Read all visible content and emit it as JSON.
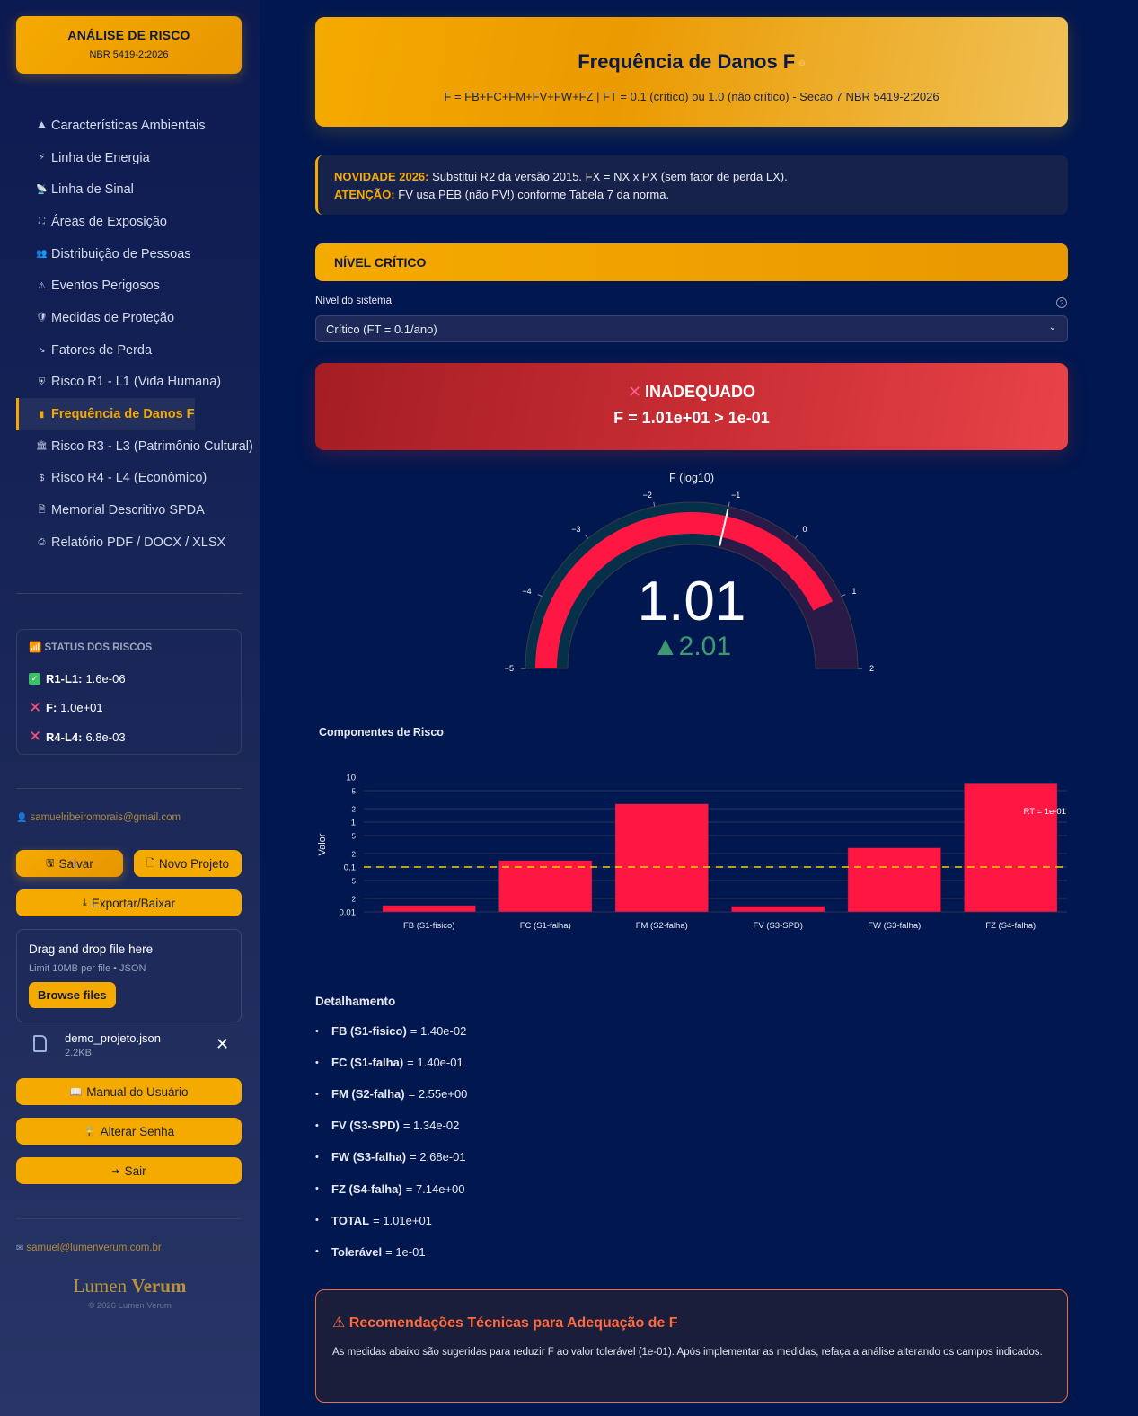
{
  "sidebar": {
    "brand": {
      "title": "ANÁLISE DE RISCO",
      "subtitle": "NBR 5419-2:2026"
    },
    "nav": [
      {
        "icon": "mountain-icon",
        "glyph": "⛰",
        "label": "Características Ambientais"
      },
      {
        "icon": "plug-icon",
        "glyph": "⚡",
        "label": "Linha de Energia"
      },
      {
        "icon": "antenna-icon",
        "glyph": "📡",
        "label": "Linha de Sinal"
      },
      {
        "icon": "expand-icon",
        "glyph": "⛶",
        "label": "Áreas de Exposição"
      },
      {
        "icon": "people-icon",
        "glyph": "👥",
        "label": "Distribuição de Pessoas"
      },
      {
        "icon": "warning-icon",
        "glyph": "⚠",
        "label": "Eventos Perigosos"
      },
      {
        "icon": "shield-icon",
        "glyph": "🛡",
        "label": "Medidas de Proteção"
      },
      {
        "icon": "trend-down-icon",
        "glyph": "↘",
        "label": "Fatores de Perda"
      },
      {
        "icon": "shield-heart-icon",
        "glyph": "⛨",
        "label": "Risco R1 - L1 (Vida Humana)"
      },
      {
        "icon": "bar-chart-icon",
        "glyph": "▮",
        "label": "Frequência de Danos F",
        "active": true
      },
      {
        "icon": "museum-icon",
        "glyph": "🏛",
        "label": "Risco R3 - L3 (Patrimônio Cultural)"
      },
      {
        "icon": "dollar-icon",
        "glyph": "$",
        "label": "Risco R4 - L4 (Econômico)"
      },
      {
        "icon": "document-icon",
        "glyph": "🗎",
        "label": "Memorial Descritivo SPDA"
      },
      {
        "icon": "printer-icon",
        "glyph": "⎙",
        "label": "Relatório PDF / DOCX / XLSX"
      }
    ],
    "status": {
      "title": "STATUS DOS RISCOS",
      "items": [
        {
          "key": "R1-L1:",
          "value": "1.6e-06",
          "state": "ok"
        },
        {
          "key": "F:",
          "value": "1.0e+01",
          "state": "fail"
        },
        {
          "key": "R4-L4:",
          "value": "6.8e-03",
          "state": "fail"
        }
      ]
    },
    "user_email": "samuelribeiromorais@gmail.com",
    "buttons": {
      "save": "Salvar",
      "new_project": "Novo Projeto",
      "export": "Exportar/Baixar",
      "manual": "Manual do Usuário",
      "change_password": "Alterar Senha",
      "logout": "Sair"
    },
    "upload": {
      "title": "Drag and drop file here",
      "limit": "Limit 10MB per file • JSON",
      "browse": "Browse files",
      "file_name": "demo_projeto.json",
      "file_size": "2.2KB"
    },
    "footer_email": "samuel@lumenverum.com.br",
    "logo_light": "Lumen ",
    "logo_bold": "Verum",
    "copyright": "© 2026 Lumen Verum"
  },
  "main": {
    "title": "Frequência de Danos F",
    "anchor_glyph": "⊖",
    "subtitle": "F = FB+FC+FM+FV+FW+FZ | FT = 0.1 (crítico) ou 1.0 (não crítico) - Secao 7 NBR 5419-2:2026",
    "notice": {
      "l1_label": "NOVIDADE 2026:",
      "l1_text": " Substitui R2 da versão 2015. FX = NX x PX (sem fator de perda LX).",
      "l2_label": "ATENÇÃO:",
      "l2_text": " FV usa PEB (não PV!) conforme Tabela 7 da norma."
    },
    "section": "NÍVEL CRÍTICO",
    "field_label": "Nível do sistema",
    "select_value": "Crítico (FT = 0.1/ano)",
    "verdict": {
      "status": "INADEQUADO",
      "expression": "F = 1.01e+01 > 1e-01"
    },
    "gauge": {
      "title": "F (log10)",
      "value": "1.01",
      "delta": "▲2.01",
      "min": -5,
      "max": 2,
      "threshold": -1,
      "current": 1.01,
      "ticks": [
        "−5",
        "−4",
        "−3",
        "−2",
        "−1",
        "0",
        "1",
        "2"
      ]
    },
    "chart_title": "Componentes de Risco",
    "detail_title": "Detalhamento",
    "details": [
      {
        "k": "FB (S1-fisico)",
        "v": "= 1.40e-02"
      },
      {
        "k": "FC (S1-falha)",
        "v": "= 1.40e-01"
      },
      {
        "k": "FM (S2-falha)",
        "v": "= 2.55e+00"
      },
      {
        "k": "FV (S3-SPD)",
        "v": "= 1.34e-02"
      },
      {
        "k": "FW (S3-falha)",
        "v": "= 2.68e-01"
      },
      {
        "k": "FZ (S4-falha)",
        "v": "= 7.14e+00"
      },
      {
        "k": "TOTAL",
        "v": "= 1.01e+01"
      },
      {
        "k": "Tolerável",
        "v": "= 1e-01"
      }
    ],
    "recommendations": {
      "title": "⚠ Recomendações Técnicas para Adequação de F",
      "text": "As medidas abaixo são sugeridas para reduzir F ao valor tolerável (1e-01). Após implementar as medidas, refaça a análise alterando os campos indicados."
    }
  },
  "colors": {
    "accent": "#f5aa00",
    "bar": "#ff1744",
    "threshold_line": "#f5d000",
    "fail": "#e84348",
    "ok": "#3fbf6a"
  },
  "chart_data": [
    {
      "type": "bar",
      "title": "Componentes de Risco",
      "xlabel": "",
      "ylabel": "Valor",
      "yscale": "log",
      "ylim": [
        0.01,
        10
      ],
      "y_tick_labels": [
        "0.01",
        "2",
        "5",
        "0.1",
        "2",
        "5",
        "1",
        "2",
        "5",
        "10"
      ],
      "categories": [
        "FB (S1-fisico)",
        "FC (S1-falha)",
        "FM (S2-falha)",
        "FV (S3-SPD)",
        "FW (S3-falha)",
        "FZ (S4-falha)"
      ],
      "values": [
        0.014,
        0.14,
        2.55,
        0.0134,
        0.268,
        7.14
      ],
      "annotations": [
        {
          "type": "hline",
          "y": 0.1,
          "label": "RT = 1e-01",
          "style": "dashed"
        }
      ],
      "grid": true
    },
    {
      "type": "gauge",
      "title": "F (log10)",
      "range": [
        -5,
        2
      ],
      "value": 1.01,
      "delta": 2.01,
      "threshold": -1,
      "ticks": [
        -5,
        -4,
        -3,
        -2,
        -1,
        0,
        1,
        2
      ]
    }
  ]
}
